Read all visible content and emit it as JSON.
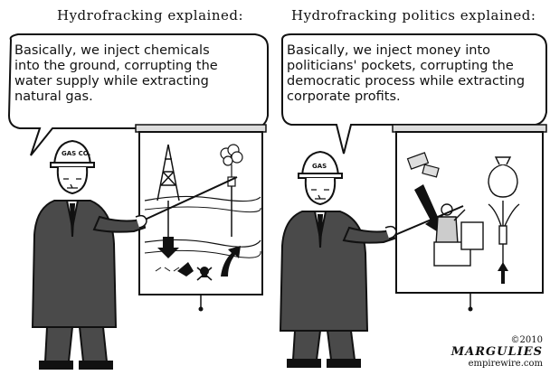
{
  "panels": {
    "left": {
      "title": "Hydrofracking explained:",
      "speech": [
        "Basically, we inject chemicals",
        "into the ground, corrupting the",
        "water supply while extracting",
        "natural gas."
      ],
      "hard_hat_label": "GAS CO."
    },
    "right": {
      "title": "Hydrofracking politics explained:",
      "speech": [
        "Basically, we inject money into",
        "politicians' pockets, corrupting the",
        "democratic process while extracting",
        "corporate profits."
      ],
      "hard_hat_label": "GAS"
    }
  },
  "signature": {
    "copyright": "©2010",
    "artist": "MARGULIES",
    "site": "empirewire.com"
  },
  "icons": [
    "oil-derrick-icon",
    "flame-icon",
    "skull-icon",
    "money-bag-icon",
    "dollar-bill-icon",
    "fountain-icon"
  ],
  "colors": {
    "ink": "#111111",
    "paper": "#ffffff",
    "gray": "#9a9a9a"
  }
}
